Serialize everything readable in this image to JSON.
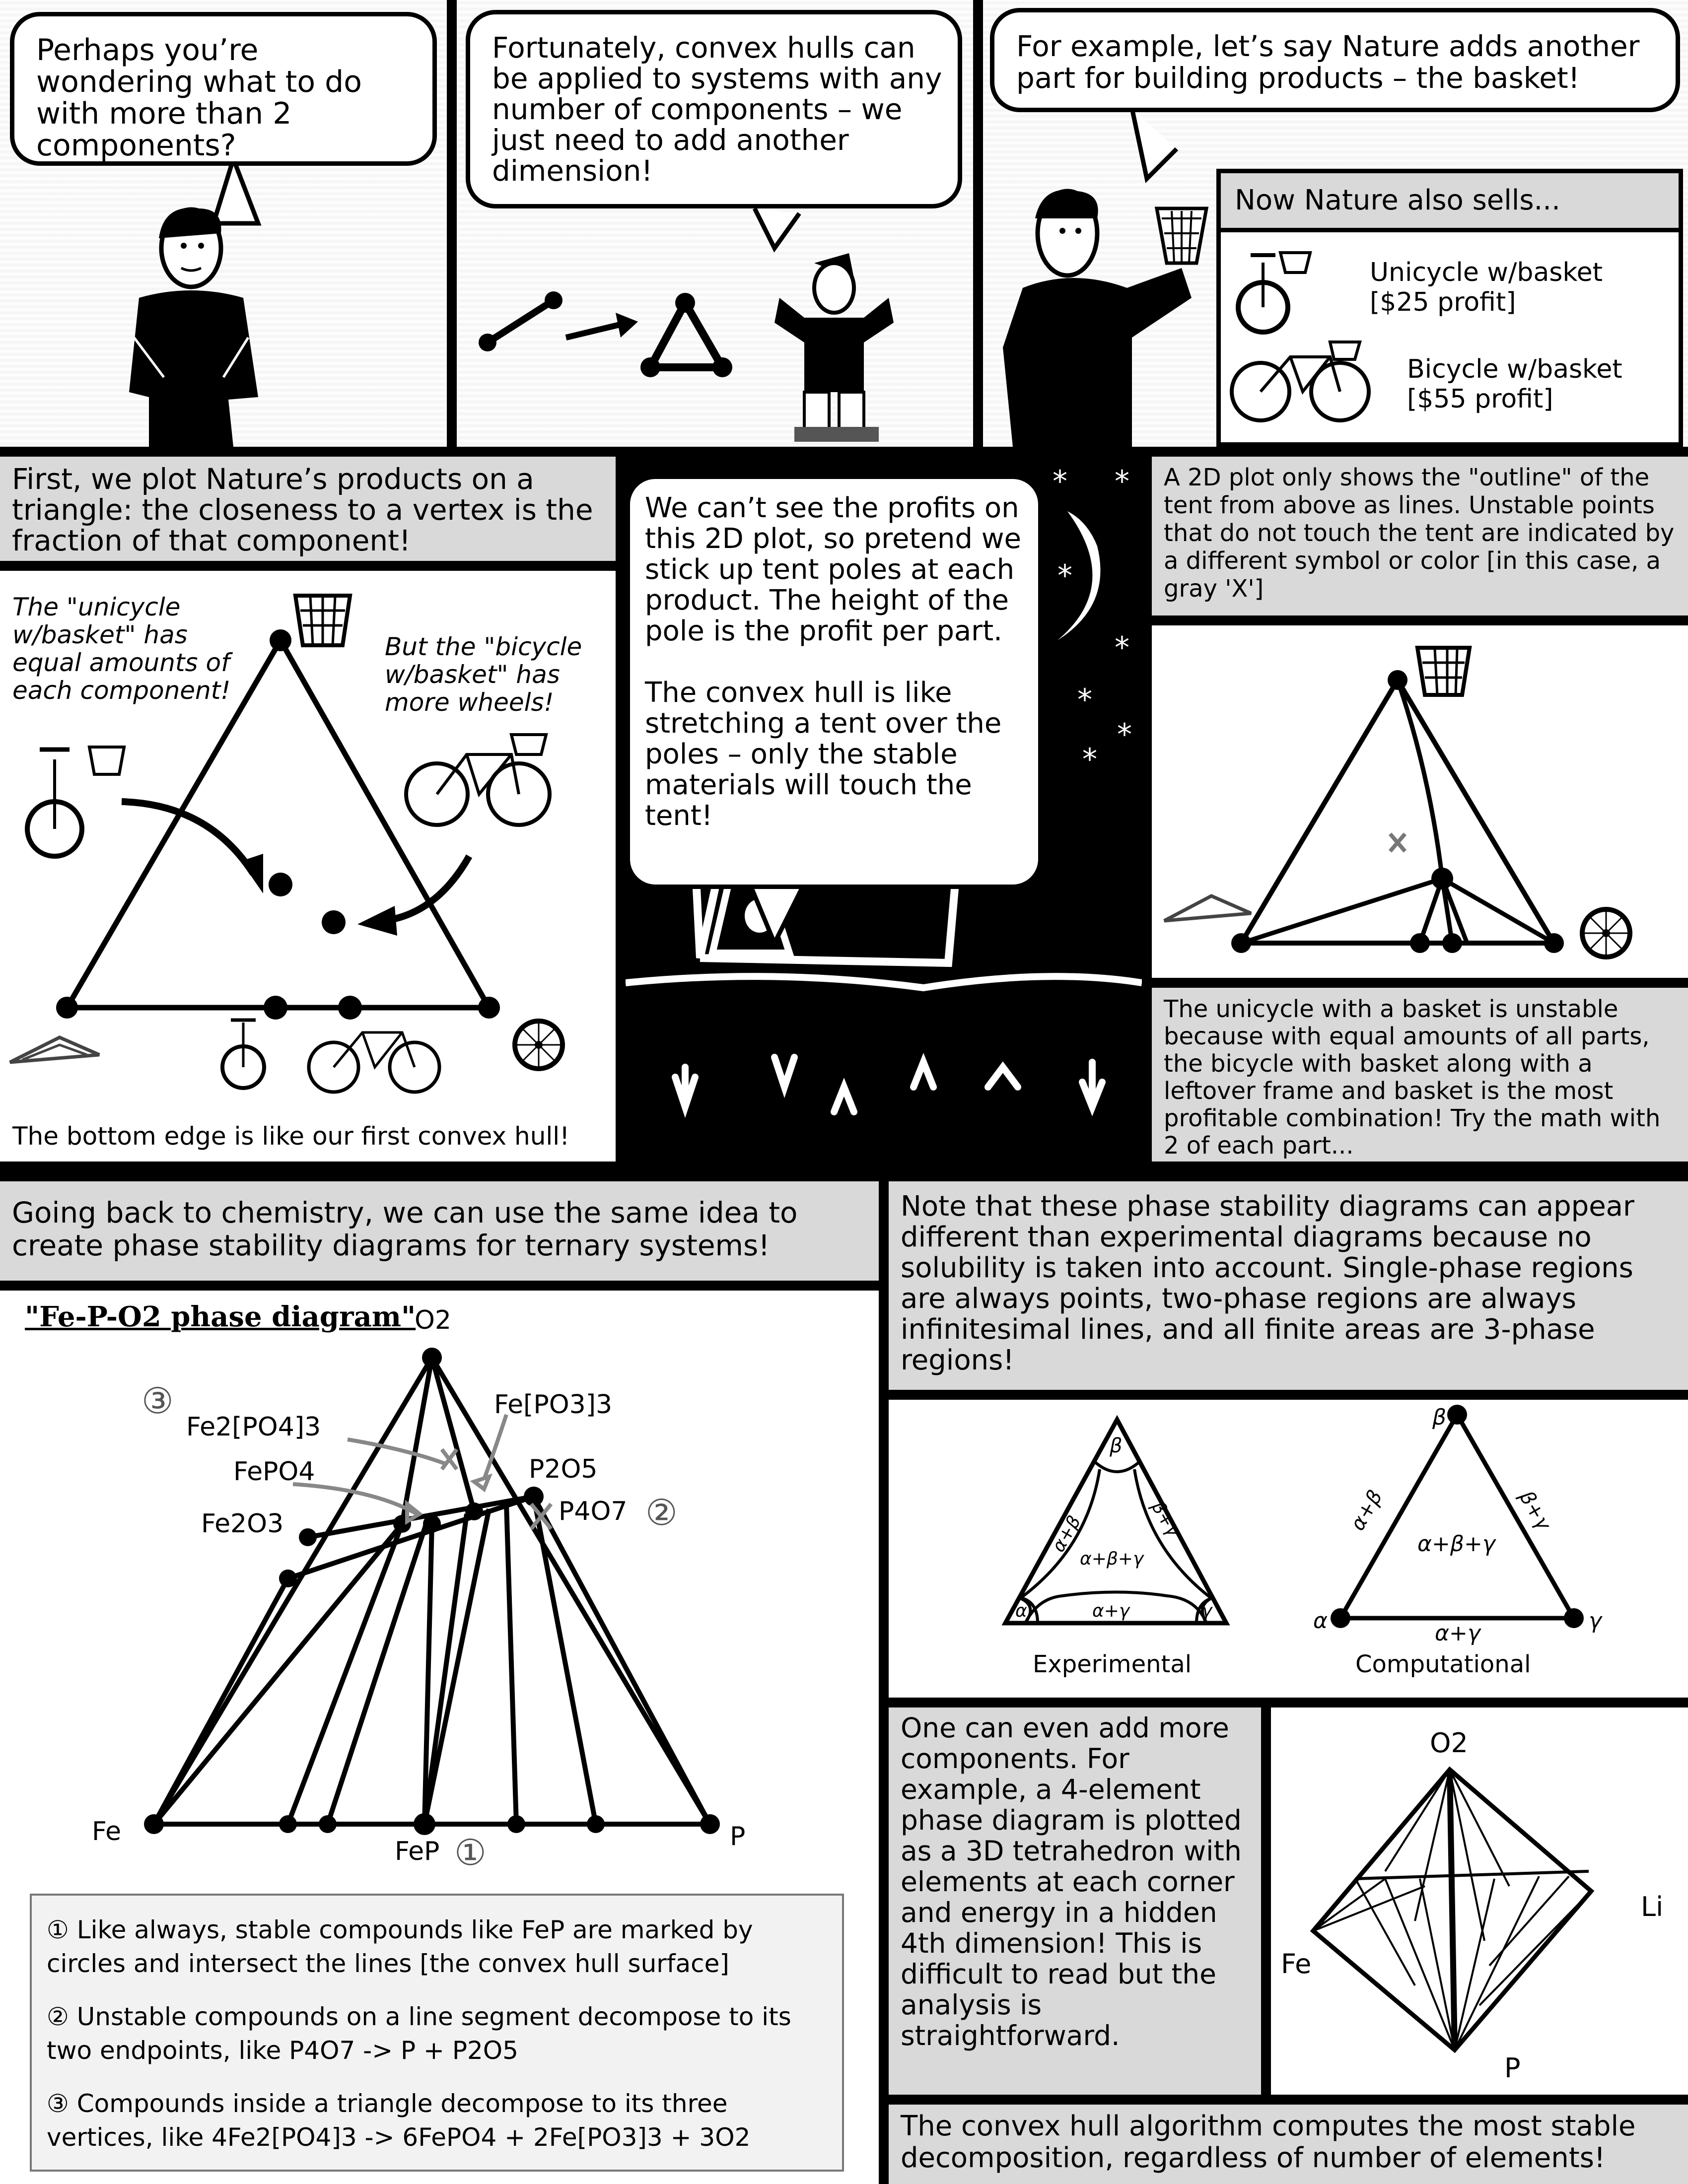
{
  "row1": {
    "bubble1": "Perhaps you’re wondering what to do with more than 2 components?",
    "bubble2": "Fortunately, convex hulls can be applied to systems with any number of components – we just need to add another dimension!",
    "bubble3": "For example, let’s say Nature adds another part for building products – the basket!",
    "shop": {
      "header": "Now Nature also sells...",
      "item1_name": "Unicycle w/basket",
      "item1_profit": "[$25 profit]",
      "item2_name": "Bicycle w/basket",
      "item2_profit": "[$55 profit]"
    }
  },
  "row2": {
    "caption_left": "First, we plot Nature’s products on a triangle: the closeness to a vertex is the fraction of that component!",
    "note_unicycle": "The \"unicycle w/basket\" has equal amounts of each component!",
    "note_bicycle": "But the \"bicycle w/basket\" has more wheels!",
    "caption_bottom": "The bottom edge is like our first convex hull!",
    "bubble_tent": "We can’t see the profits on this 2D plot, so pretend we stick up tent poles at each product. The height of the pole is the profit per part.\n\nThe convex hull is like stretching a tent over the poles – only the stable materials will touch the tent!",
    "caption_right": "A 2D plot only shows the \"outline\" of the tent from above as lines. Unstable points that do not touch the tent are indicated by a different symbol or color [in this case, a gray 'X']",
    "caption_unstable": "The unicycle with a basket is unstable because with equal amounts of all parts, the bicycle with basket along with a leftover frame and basket is the most profitable combination! Try the math with 2 of each part..."
  },
  "row3": {
    "caption_left": "Going back to chemistry, we can use the same idea to create phase stability diagrams for ternary systems!",
    "diagram_title": "\"Fe-P-O2 phase diagram\"",
    "labels": {
      "o2": "O2",
      "fe": "Fe",
      "p": "P",
      "fep": "FeP",
      "fe2po43": "Fe2[PO4]3",
      "fepo4": "FePO4",
      "fe2o3": "Fe2O3",
      "fepo33": "Fe[PO3]3",
      "p2o5": "P2O5",
      "p4o7": "P4O7",
      "m1": "①",
      "m2": "②",
      "m3": "③"
    },
    "legend": {
      "item1": "① Like always, stable compounds like FeP are marked by circles and intersect the lines [the convex hull surface]",
      "item2": "② Unstable compounds on a line segment decompose to its two endpoints, like P4O7 -> P + P2O5",
      "item3": "③ Compounds inside a triangle decompose to its three vertices, like 4Fe2[PO4]3 -> 6FePO4 + 2Fe[PO3]3 + 3O2"
    },
    "caption_right": "Note that these phase stability diagrams can appear different than experimental diagrams because no solubility is taken into account. Single-phase regions are always points, two-phase regions are always infinitesimal lines, and all finite areas are 3-phase regions!",
    "experimental": {
      "label": "Experimental",
      "beta": "β",
      "alpha": "α",
      "gamma": "γ",
      "ab": "α+β",
      "bg": "β+γ",
      "ag": "α+γ",
      "abg": "α+β+γ"
    },
    "computational": {
      "label": "Computational",
      "beta": "β",
      "alpha": "α",
      "gamma": "γ",
      "ab": "α+β",
      "bg": "β+γ",
      "ag": "α+γ",
      "abg": "α+β+γ"
    },
    "caption_4d": "One can even add more components. For example, a 4-element phase diagram is plotted as a 3D tetrahedron with elements at each corner and energy in a hidden 4th dimension! This is difficult to read but the analysis is straightforward.",
    "tetra": {
      "o2": "O2",
      "li": "Li",
      "fe": "Fe",
      "p": "P"
    },
    "caption_final": "The convex hull algorithm computes the most stable decomposition, regardless of number of elements!"
  }
}
